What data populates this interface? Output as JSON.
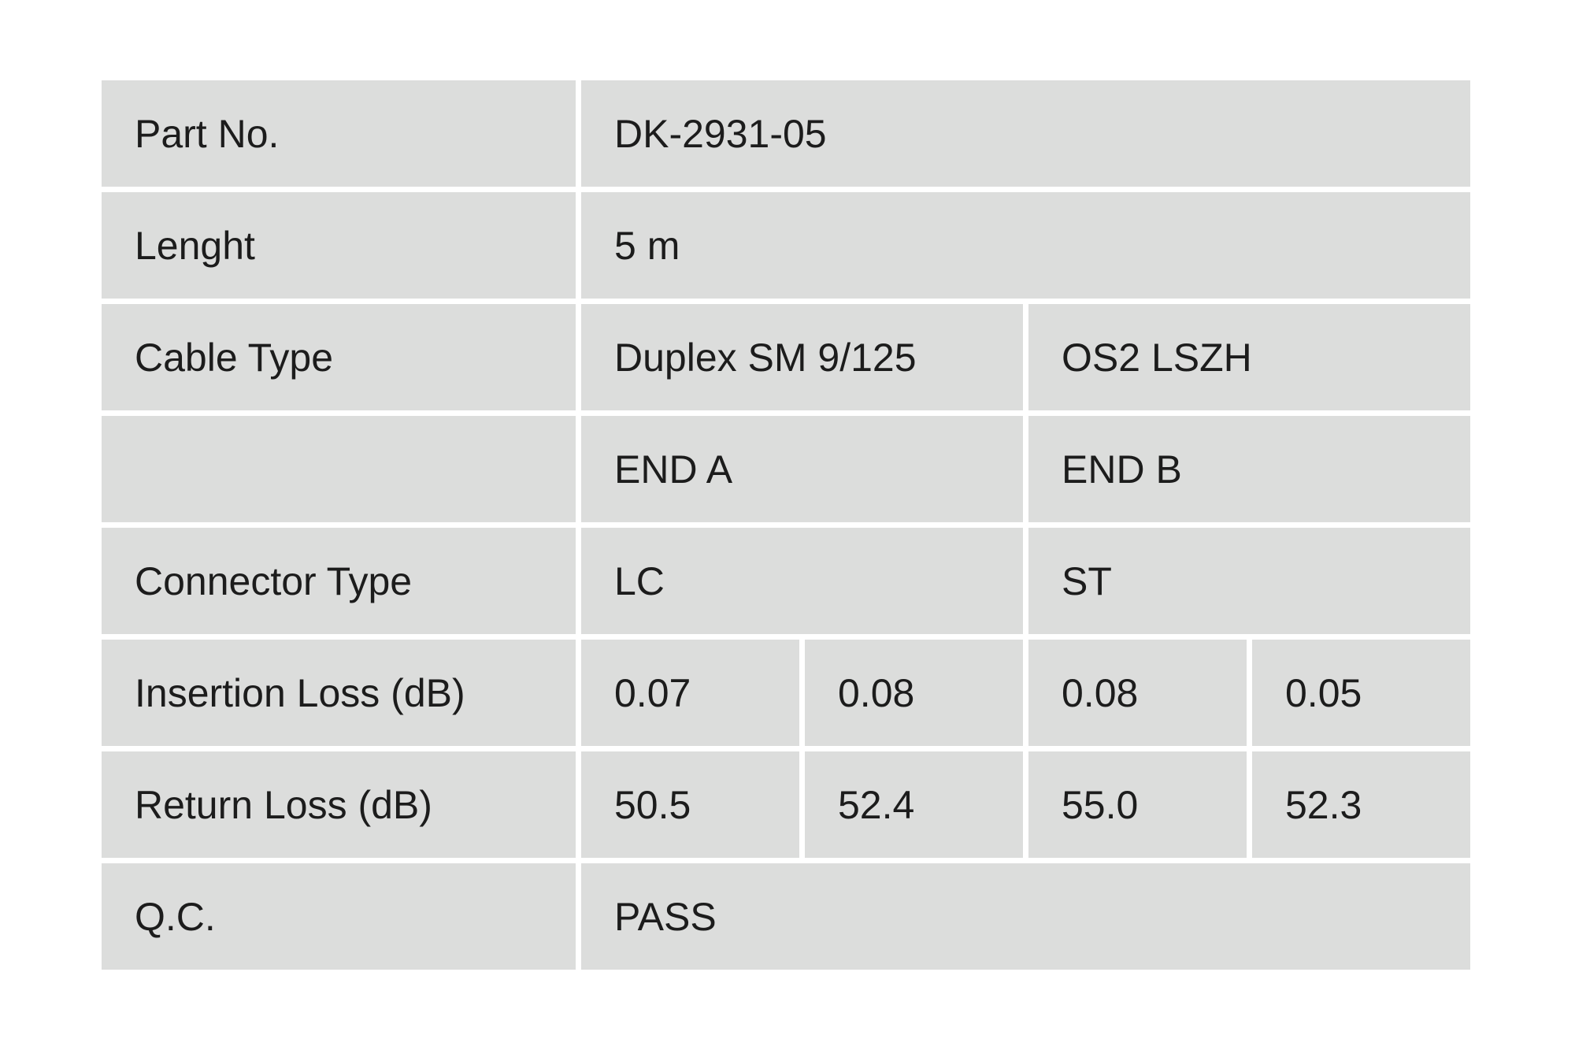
{
  "table": {
    "rows": [
      {
        "label": "Part No.",
        "cells": [
          "DK-2931-05"
        ]
      },
      {
        "label": "Lenght",
        "cells": [
          "5 m"
        ]
      },
      {
        "label": "Cable Type",
        "cells": [
          "Duplex SM 9/125",
          "OS2 LSZH"
        ]
      },
      {
        "cells": [
          "END A",
          "END B"
        ]
      },
      {
        "label": "Connector Type",
        "cells": [
          "LC",
          "ST"
        ]
      },
      {
        "label": "Insertion Loss (dB)",
        "cells": [
          "0.07",
          "0.08",
          "0.08",
          "0.05"
        ]
      },
      {
        "label": "Return Loss (dB)",
        "cells": [
          "50.5",
          "52.4",
          "55.0",
          "52.3"
        ]
      },
      {
        "label": "Q.C.",
        "cells": [
          "PASS"
        ]
      }
    ]
  }
}
